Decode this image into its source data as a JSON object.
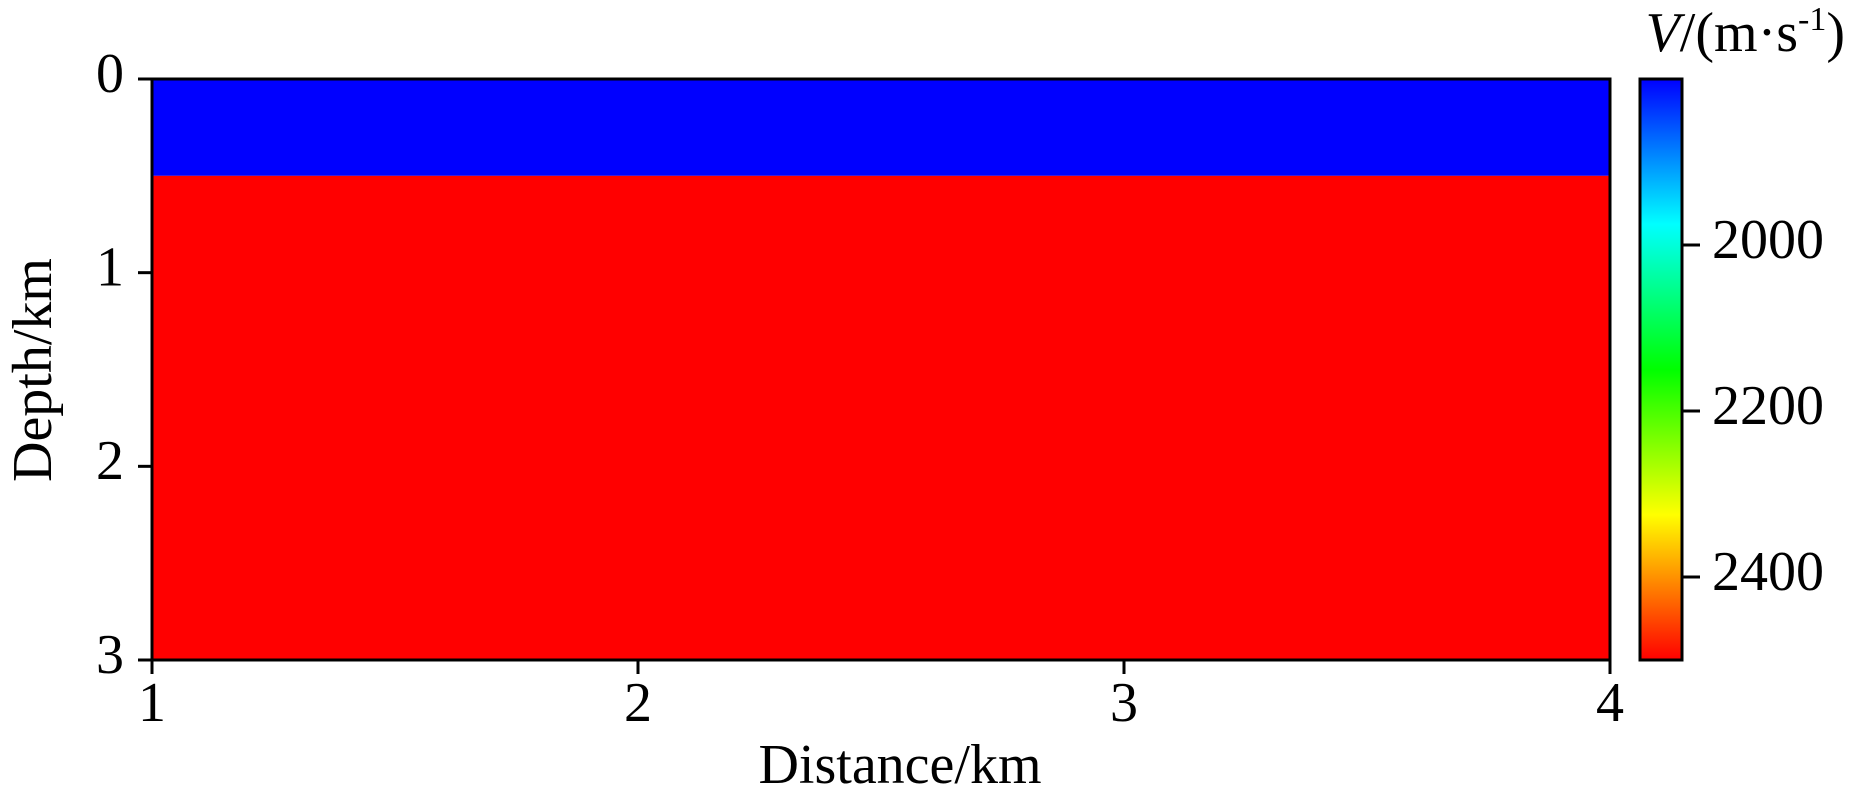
{
  "chart_data": {
    "type": "heatmap",
    "xlabel": "Distance/km",
    "ylabel": "Depth/km",
    "colorbar_label": [
      "V",
      "/(m·s",
      "-1",
      ")"
    ],
    "xlim": [
      1,
      4
    ],
    "xticks": [
      1,
      2,
      3,
      4
    ],
    "ylim": [
      0,
      3
    ],
    "yticks": [
      0,
      1,
      2,
      3
    ],
    "y_edges": [
      0,
      0.5,
      3
    ],
    "values": [
      1800,
      2500
    ],
    "clim": [
      1800,
      2500
    ],
    "cticks": [
      2000,
      2200,
      2400
    ],
    "colormap": [
      "#0000ff",
      "#00ffff",
      "#00ff00",
      "#ffff00",
      "#ff0000"
    ]
  }
}
